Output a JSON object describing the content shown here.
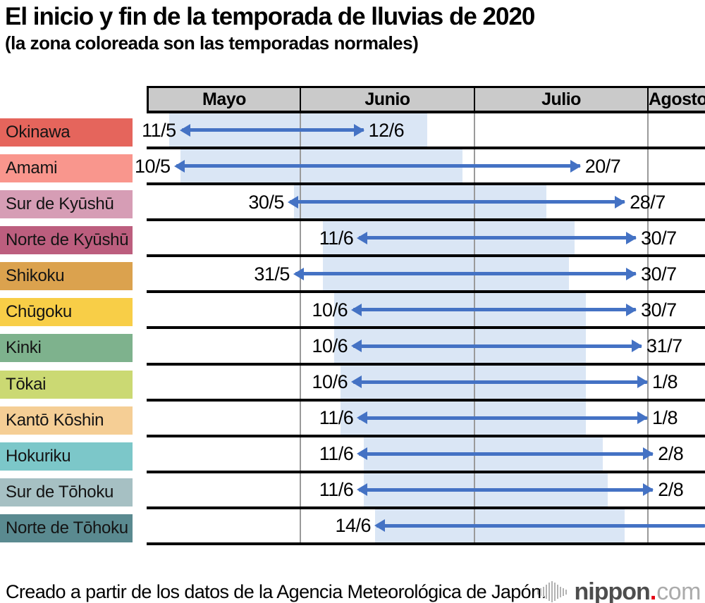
{
  "title": "El inicio y fin de la temporada de lluvias de 2020",
  "subtitle": "(la zona coloreada son las temporadas normales)",
  "axis": {
    "months": [
      "Mayo",
      "Junio",
      "Julio",
      "Agosto"
    ]
  },
  "chart_data": {
    "type": "timeline",
    "title": "El inicio y fin de la temporada de lluvias de 2020",
    "note": "la zona coloreada son las temporadas normales",
    "x_months": [
      "Mayo",
      "Junio",
      "Julio",
      "Agosto"
    ],
    "date_format": "d/m (2020)",
    "colors": {
      "arrow": "#4472C4",
      "normal_zone": "#DAE6F5",
      "header_bg": "#CACACA"
    },
    "rows": [
      {
        "region": "Okinawa",
        "color": "#E5655C",
        "start": "11/5",
        "end": "12/6",
        "normal_start": "9/5",
        "normal_end": "23/6"
      },
      {
        "region": "Amami",
        "color": "#F9968D",
        "start": "10/5",
        "end": "20/7",
        "normal_start": "11/5",
        "normal_end": "29/6"
      },
      {
        "region": "Sur de Kyūshū",
        "color": "#D69DB5",
        "start": "30/5",
        "end": "28/7",
        "normal_start": "31/5",
        "normal_end": "14/7"
      },
      {
        "region": "Norte de Kyūshū",
        "color": "#BC5E7E",
        "start": "11/6",
        "end": "30/7",
        "normal_start": "5/6",
        "normal_end": "19/7"
      },
      {
        "region": "Shikoku",
        "color": "#DBA24E",
        "start": "31/5",
        "end": "30/7",
        "normal_start": "5/6",
        "normal_end": "18/7"
      },
      {
        "region": "Chūgoku",
        "color": "#F8CE47",
        "start": "10/6",
        "end": "30/7",
        "normal_start": "7/6",
        "normal_end": "21/7"
      },
      {
        "region": "Kinki",
        "color": "#7EB28D",
        "start": "10/6",
        "end": "31/7",
        "normal_start": "7/6",
        "normal_end": "21/7"
      },
      {
        "region": "Tōkai",
        "color": "#CBD973",
        "start": "10/6",
        "end": "1/8",
        "normal_start": "8/6",
        "normal_end": "21/7"
      },
      {
        "region": "Kantō Kōshin",
        "color": "#F5CE95",
        "start": "11/6",
        "end": "1/8",
        "normal_start": "8/6",
        "normal_end": "21/7"
      },
      {
        "region": "Hokuriku",
        "color": "#7CC7C9",
        "start": "11/6",
        "end": "2/8",
        "normal_start": "12/6",
        "normal_end": "24/7"
      },
      {
        "region": "Sur de Tōhoku",
        "color": "#A6C0C3",
        "start": "11/6",
        "end": "2/8",
        "normal_start": "12/6",
        "normal_end": "25/7"
      },
      {
        "region": "Norte de Tōhoku",
        "color": "#5A8A90",
        "start": "14/6",
        "end": null,
        "normal_start": "14/6",
        "normal_end": "28/7"
      }
    ]
  },
  "footer": {
    "source": "Creado a partir de los datos de la Agencia Meteorológica de Japón.",
    "logo": {
      "brand": "nippon",
      "dot": ".",
      "tld": "com",
      "dot_color": "#E60012",
      "icon": "soundwave-bars"
    }
  }
}
